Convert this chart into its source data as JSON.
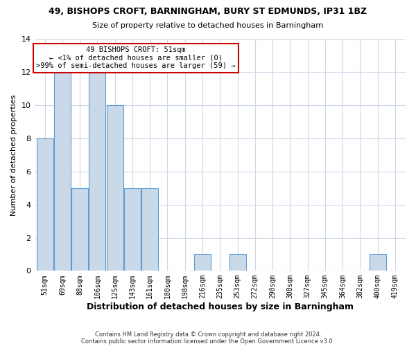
{
  "title1": "49, BISHOPS CROFT, BARNINGHAM, BURY ST EDMUNDS, IP31 1BZ",
  "title2": "Size of property relative to detached houses in Barningham",
  "xlabel": "Distribution of detached houses by size in Barningham",
  "ylabel": "Number of detached properties",
  "bin_labels": [
    "51sqm",
    "69sqm",
    "88sqm",
    "106sqm",
    "125sqm",
    "143sqm",
    "161sqm",
    "180sqm",
    "198sqm",
    "216sqm",
    "235sqm",
    "253sqm",
    "272sqm",
    "290sqm",
    "308sqm",
    "327sqm",
    "345sqm",
    "364sqm",
    "382sqm",
    "400sqm",
    "419sqm"
  ],
  "bar_values": [
    8,
    12,
    5,
    12,
    10,
    5,
    5,
    0,
    0,
    1,
    0,
    1,
    0,
    0,
    0,
    0,
    0,
    0,
    0,
    1,
    0
  ],
  "bar_color": "#c9d9e8",
  "bar_edge_color": "#5b9bd5",
  "annotation_title": "49 BISHOPS CROFT: 51sqm",
  "annotation_line1": "← <1% of detached houses are smaller (0)",
  "annotation_line2": ">99% of semi-detached houses are larger (59) →",
  "annotation_box_color": "#ffffff",
  "annotation_box_edge": "#cc0000",
  "ylim": [
    0,
    14
  ],
  "yticks": [
    0,
    2,
    4,
    6,
    8,
    10,
    12,
    14
  ],
  "footer1": "Contains HM Land Registry data © Crown copyright and database right 2024.",
  "footer2": "Contains public sector information licensed under the Open Government Licence v3.0.",
  "bg_color": "#ffffff",
  "grid_color": "#cdd8e8"
}
